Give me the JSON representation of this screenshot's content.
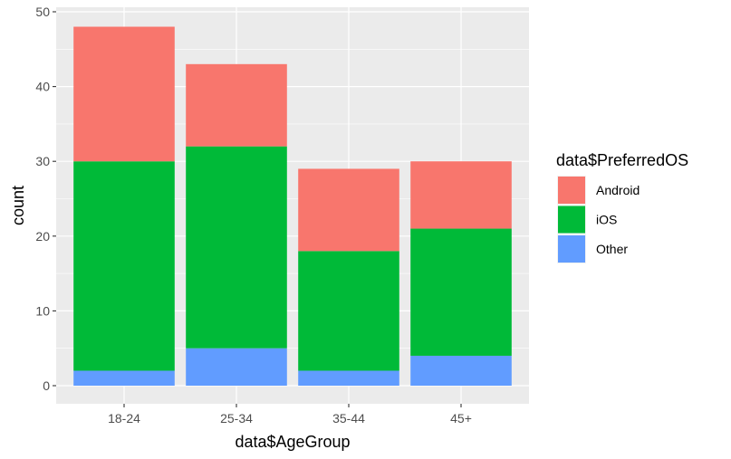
{
  "chart_data": {
    "type": "bar",
    "stacked": true,
    "xlabel": "data$AgeGroup",
    "ylabel": "count",
    "categories": [
      "18-24",
      "25-34",
      "35-44",
      "45+"
    ],
    "series": [
      {
        "name": "Android",
        "color": "#F8766D",
        "values": [
          18,
          11,
          11,
          9
        ]
      },
      {
        "name": "iOS",
        "color": "#00BA38",
        "values": [
          28,
          27,
          16,
          17
        ]
      },
      {
        "name": "Other",
        "color": "#619CFF",
        "values": [
          2,
          5,
          2,
          4
        ]
      }
    ],
    "stack_order_bottom_to_top": [
      "Other",
      "iOS",
      "Android"
    ],
    "ylim": [
      0,
      50
    ],
    "yticks": [
      0,
      10,
      20,
      30,
      40,
      50
    ],
    "grid": true,
    "legend": {
      "title": "data$PreferredOS",
      "position": "right"
    },
    "panel_background": "#EBEBEB",
    "grid_color": "#FFFFFF"
  }
}
